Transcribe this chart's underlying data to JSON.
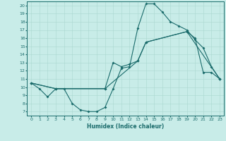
{
  "xlabel": "Humidex (Indice chaleur)",
  "bg_color": "#c8ece8",
  "line_color": "#1a6b6b",
  "xlim": [
    -0.5,
    23.5
  ],
  "ylim": [
    6.5,
    20.5
  ],
  "xticks": [
    0,
    1,
    2,
    3,
    4,
    5,
    6,
    7,
    8,
    9,
    10,
    11,
    12,
    13,
    14,
    15,
    16,
    17,
    18,
    19,
    20,
    21,
    22,
    23
  ],
  "yticks": [
    7,
    8,
    9,
    10,
    11,
    12,
    13,
    14,
    15,
    16,
    17,
    18,
    19,
    20
  ],
  "line1": {
    "x": [
      0,
      1,
      2,
      3,
      4,
      5,
      6,
      7,
      8,
      9,
      10,
      11,
      12,
      13,
      14,
      15,
      16,
      17,
      18,
      19,
      20,
      21,
      22,
      23
    ],
    "y": [
      10.5,
      9.8,
      8.8,
      9.8,
      9.8,
      8.0,
      7.2,
      7.0,
      7.0,
      7.5,
      9.8,
      12.3,
      12.5,
      17.2,
      20.2,
      20.2,
      19.2,
      18.0,
      17.5,
      17.0,
      15.8,
      14.8,
      12.5,
      11.0
    ]
  },
  "line2": {
    "x": [
      0,
      3,
      9,
      10,
      11,
      12,
      13,
      14,
      19,
      20,
      21,
      22,
      23
    ],
    "y": [
      10.5,
      9.8,
      9.8,
      13.0,
      12.5,
      12.8,
      13.2,
      15.5,
      16.8,
      16.0,
      11.8,
      11.8,
      11.0
    ]
  },
  "line3": {
    "x": [
      0,
      3,
      9,
      13,
      14,
      19,
      23
    ],
    "y": [
      10.5,
      9.8,
      9.8,
      13.2,
      15.5,
      16.8,
      11.0
    ]
  },
  "grid_color": "#aad8d0",
  "marker": "D",
  "markersize": 2.0,
  "linewidth": 0.8
}
